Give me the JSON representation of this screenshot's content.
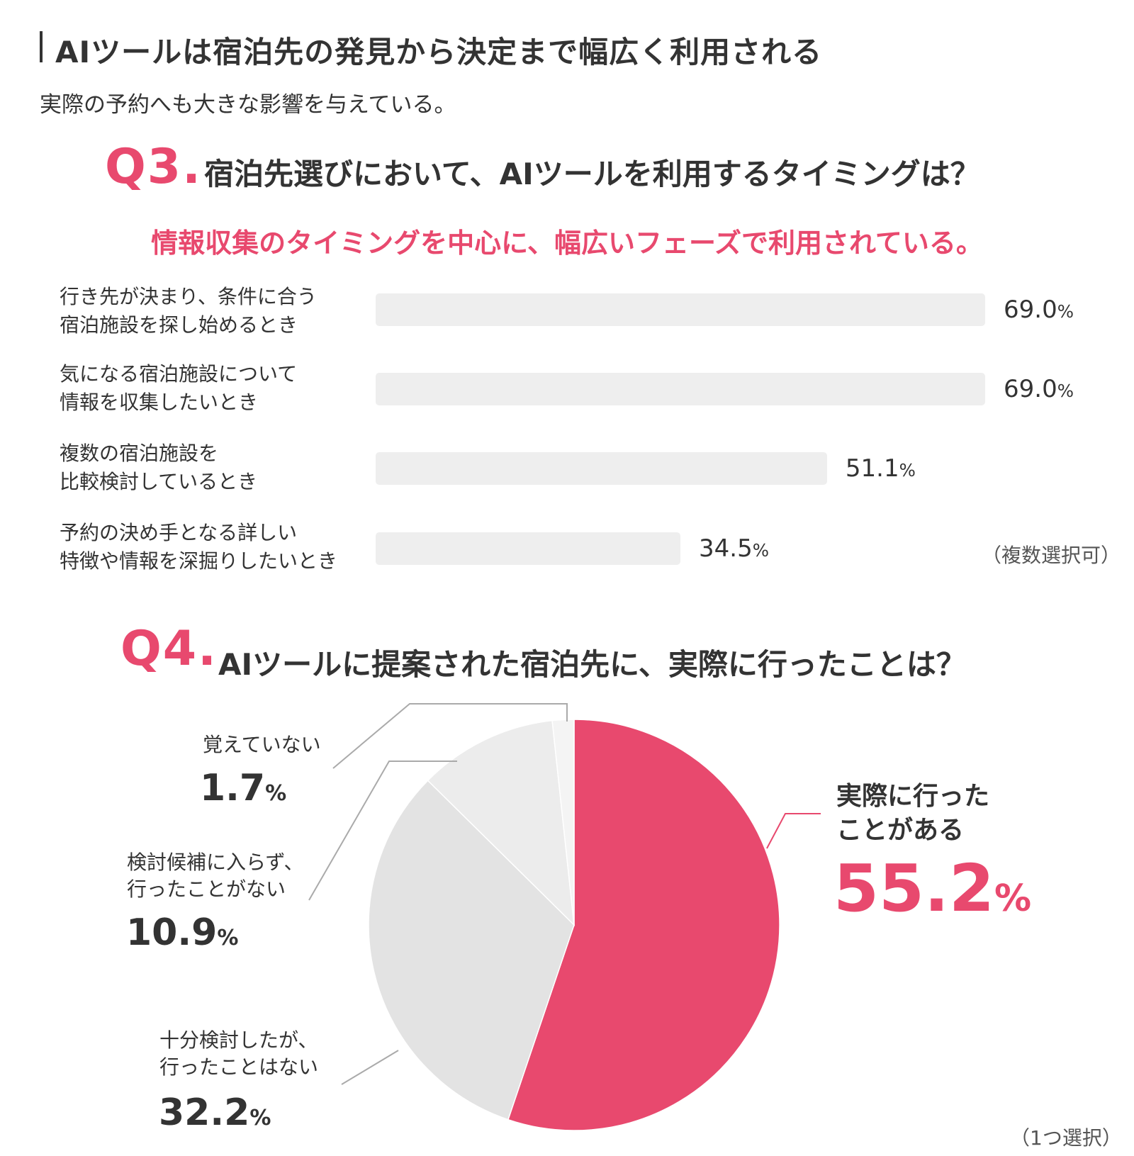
{
  "header": {
    "title": "AIツールは宿泊先の発見から決定まで幅広く利用される",
    "subtitle": "実際の予約へも大きな影響を与えている。"
  },
  "q3": {
    "number": "Q3.",
    "question": "宿泊先選びにおいて、AIツールを利用するタイミングは？",
    "highlight": "情報収集のタイミングを中心に、幅広いフェーズで利用されている。",
    "note": "（複数選択可）"
  },
  "q4": {
    "number": "Q4.",
    "question": "AIツールに提案された宿泊先に、実際に行ったことは？",
    "note": "（1つ選択）"
  },
  "colors": {
    "accent": "#e8496e",
    "text": "#333333",
    "bar_track": "#eeeeee",
    "pie_gray_1": "#e3e3e3",
    "pie_gray_2": "#ececec",
    "pie_gray_3": "#f4f4f4"
  },
  "chart_data": [
    {
      "type": "bar",
      "orientation": "horizontal",
      "categories": [
        "行き先が決まり、条件に合う\n宿泊施設を探し始めるとき",
        "気になる宿泊施設について\n情報を収集したいとき",
        "複数の宿泊施設を\n比較検討しているとき",
        "予約の決め手となる詳しい\n特徴や情報を深掘りしたいとき"
      ],
      "values": [
        69.0,
        69.0,
        51.1,
        34.5
      ],
      "value_labels": [
        "69.0",
        "69.0",
        "51.1",
        "34.5"
      ],
      "unit": "%",
      "xlim": [
        0,
        69.0
      ],
      "grid": false
    },
    {
      "type": "pie",
      "labels": [
        "実際に行った\nことがある",
        "十分検討したが、\n行ったことはない",
        "検討候補に入らず、\n行ったことがない",
        "覚えていない"
      ],
      "values": [
        55.2,
        32.2,
        10.9,
        1.7
      ],
      "value_labels": [
        "55.2",
        "32.2",
        "10.9",
        "1.7"
      ],
      "unit": "%",
      "start": "12 o'clock, clockwise"
    }
  ]
}
